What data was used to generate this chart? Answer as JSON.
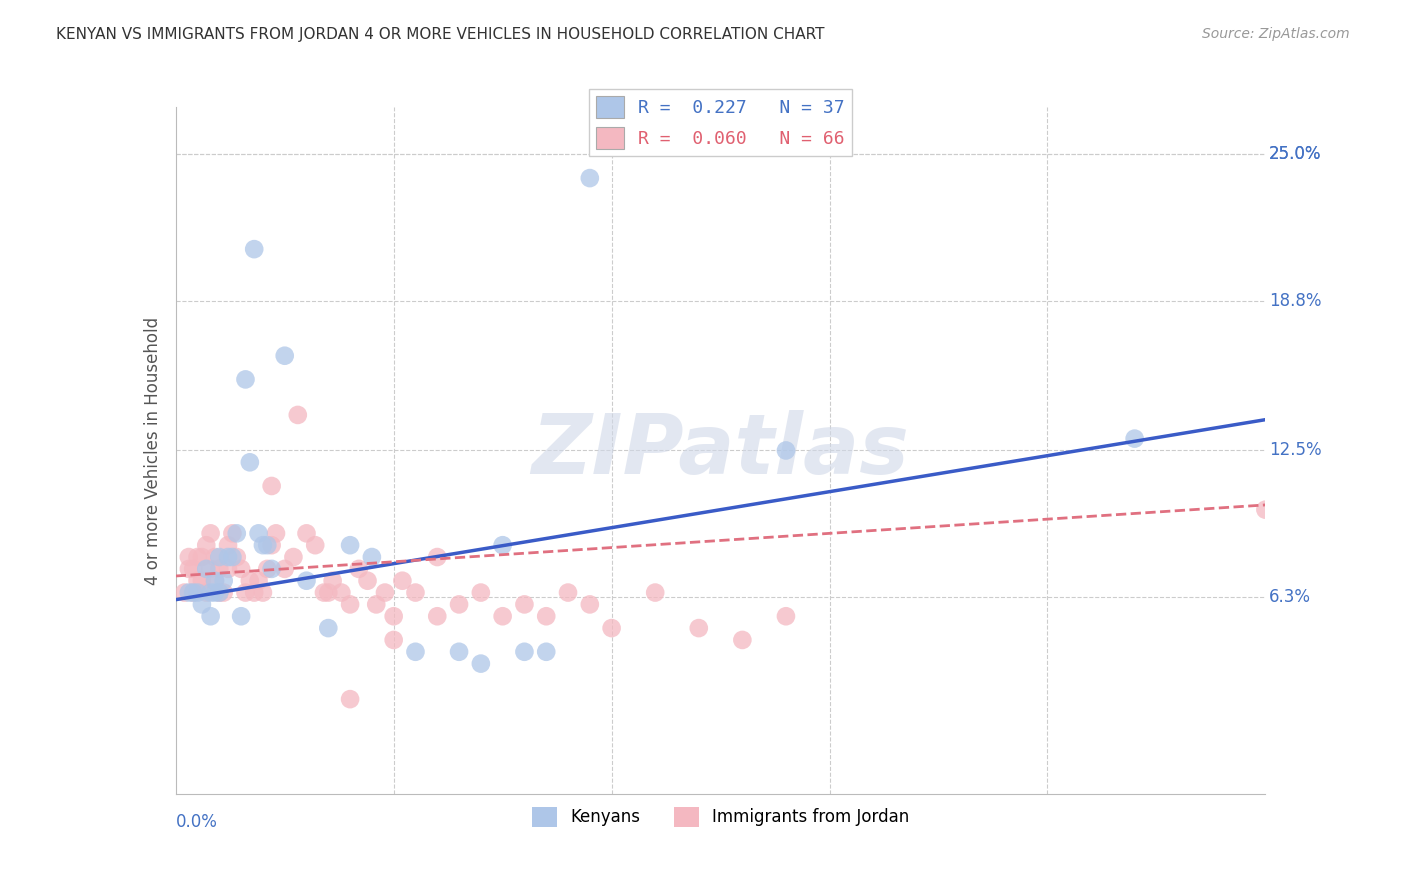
{
  "title": "KENYAN VS IMMIGRANTS FROM JORDAN 4 OR MORE VEHICLES IN HOUSEHOLD CORRELATION CHART",
  "source": "Source: ZipAtlas.com",
  "ylabel": "4 or more Vehicles in Household",
  "ytick_labels": [
    "6.3%",
    "12.5%",
    "18.8%",
    "25.0%"
  ],
  "ytick_values": [
    0.063,
    0.125,
    0.188,
    0.25
  ],
  "xlim": [
    0.0,
    0.25
  ],
  "ylim": [
    -0.02,
    0.27
  ],
  "legend_entries": [
    {
      "label": "R =  0.227   N = 37",
      "facecolor": "#aec6e8",
      "text_color": "#4472c4"
    },
    {
      "label": "R =  0.060   N = 66",
      "facecolor": "#f4b8c1",
      "text_color": "#e06070"
    }
  ],
  "kenyan_scatter_color": "#aec6e8",
  "jordan_scatter_color": "#f4b8c1",
  "kenyan_line_color": "#3a5bc7",
  "jordan_line_color": "#e07080",
  "watermark": "ZIPatlas",
  "kenyan_x": [
    0.004,
    0.005,
    0.006,
    0.007,
    0.008,
    0.008,
    0.009,
    0.009,
    0.01,
    0.01,
    0.011,
    0.012,
    0.013,
    0.014,
    0.015,
    0.016,
    0.017,
    0.018,
    0.019,
    0.02,
    0.021,
    0.022,
    0.025,
    0.03,
    0.035,
    0.04,
    0.045,
    0.055,
    0.065,
    0.07,
    0.075,
    0.08,
    0.085,
    0.095,
    0.14,
    0.22,
    0.003
  ],
  "kenyan_y": [
    0.065,
    0.065,
    0.06,
    0.075,
    0.055,
    0.065,
    0.065,
    0.07,
    0.08,
    0.065,
    0.07,
    0.08,
    0.08,
    0.09,
    0.055,
    0.155,
    0.12,
    0.21,
    0.09,
    0.085,
    0.085,
    0.075,
    0.165,
    0.07,
    0.05,
    0.085,
    0.08,
    0.04,
    0.04,
    0.035,
    0.085,
    0.04,
    0.04,
    0.24,
    0.125,
    0.13,
    0.065
  ],
  "jordan_x": [
    0.002,
    0.003,
    0.003,
    0.004,
    0.004,
    0.005,
    0.005,
    0.006,
    0.006,
    0.007,
    0.007,
    0.008,
    0.008,
    0.009,
    0.009,
    0.01,
    0.01,
    0.011,
    0.012,
    0.012,
    0.013,
    0.014,
    0.015,
    0.016,
    0.017,
    0.018,
    0.019,
    0.02,
    0.021,
    0.022,
    0.023,
    0.025,
    0.027,
    0.03,
    0.032,
    0.034,
    0.036,
    0.038,
    0.04,
    0.042,
    0.044,
    0.046,
    0.048,
    0.05,
    0.052,
    0.055,
    0.06,
    0.065,
    0.07,
    0.075,
    0.08,
    0.085,
    0.09,
    0.095,
    0.1,
    0.11,
    0.12,
    0.13,
    0.14,
    0.022,
    0.028,
    0.035,
    0.04,
    0.05,
    0.06,
    0.25
  ],
  "jordan_y": [
    0.065,
    0.075,
    0.08,
    0.065,
    0.075,
    0.08,
    0.07,
    0.07,
    0.08,
    0.065,
    0.085,
    0.075,
    0.09,
    0.07,
    0.08,
    0.065,
    0.075,
    0.065,
    0.085,
    0.075,
    0.09,
    0.08,
    0.075,
    0.065,
    0.07,
    0.065,
    0.07,
    0.065,
    0.075,
    0.085,
    0.09,
    0.075,
    0.08,
    0.09,
    0.085,
    0.065,
    0.07,
    0.065,
    0.06,
    0.075,
    0.07,
    0.06,
    0.065,
    0.055,
    0.07,
    0.065,
    0.08,
    0.06,
    0.065,
    0.055,
    0.06,
    0.055,
    0.065,
    0.06,
    0.05,
    0.065,
    0.05,
    0.045,
    0.055,
    0.11,
    0.14,
    0.065,
    0.02,
    0.045,
    0.055,
    0.1
  ],
  "kenyan_line_x": [
    0.0,
    0.25
  ],
  "kenyan_line_y": [
    0.062,
    0.138
  ],
  "jordan_line_x": [
    0.0,
    0.25
  ],
  "jordan_line_y": [
    0.072,
    0.102
  ],
  "bg_color": "#ffffff",
  "grid_color": "#cccccc",
  "title_color": "#333333",
  "axis_label_color": "#555555",
  "tick_color": "#4472c4"
}
